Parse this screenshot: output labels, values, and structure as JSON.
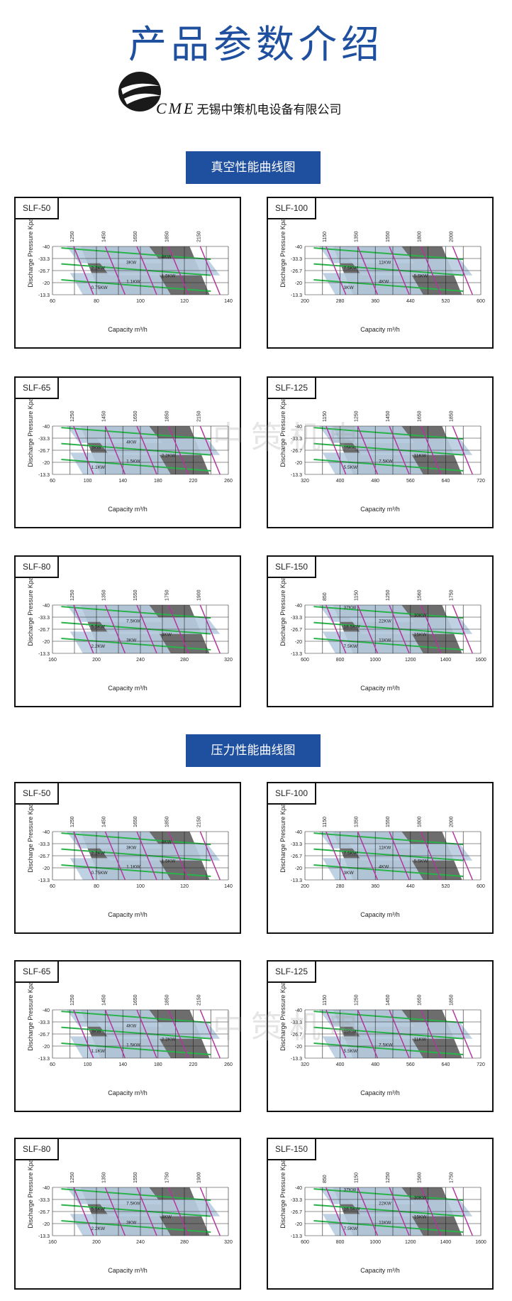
{
  "page_title": "产品参数介绍",
  "company": {
    "brand": "CME",
    "name": "无锡中策机电设备有限公司"
  },
  "sections": [
    {
      "title": "真空性能曲线图"
    },
    {
      "title": "压力性能曲线图"
    }
  ],
  "watermark": "中策机电",
  "common": {
    "ylabel": "Discharge Pressure Kpa",
    "xlabel": "Capacity m³/h",
    "yticks": [
      "-40",
      "-33.3",
      "-26.7",
      "-20",
      "-13.3"
    ]
  },
  "colors": {
    "accent": "#1f4f9f",
    "band_fill": "#b8cde0",
    "dark_fill": "#6d6d6d",
    "green": "#29b34a",
    "magenta": "#b3359e"
  },
  "chart_data": [
    {
      "type": "area",
      "model": "SLF-50",
      "x": [
        60,
        80,
        100,
        120,
        140
      ],
      "speeds": [
        "1250",
        "1450",
        "1650",
        "1850",
        "2150"
      ],
      "power": [
        "0.75KW",
        "1.1KW",
        "1.5KW",
        "2.2KW",
        "3KW",
        "4KW"
      ],
      "xlabel": "Capacity m³/h",
      "ylabel": "Discharge Pressure Kpa"
    },
    {
      "type": "area",
      "model": "SLF-100",
      "x": [
        200,
        280,
        360,
        440,
        520,
        600
      ],
      "speeds": [
        "1150",
        "1350",
        "1550",
        "1800",
        "2000"
      ],
      "power": [
        "3KW",
        "4KW",
        "5.5KW",
        "7.5KW",
        "11KW"
      ],
      "xlabel": "Capacity m³/h",
      "ylabel": "Discharge Pressure Kpa"
    },
    {
      "type": "area",
      "model": "SLF-65",
      "x": [
        60,
        100,
        140,
        180,
        220,
        260
      ],
      "speeds": [
        "1250",
        "1450",
        "1650",
        "1850",
        "2150"
      ],
      "power": [
        "1.1KW",
        "1.5KW",
        "2.2KW",
        "3KW",
        "4KW"
      ],
      "xlabel": "Capacity m³/h",
      "ylabel": "Discharge Pressure Kpa"
    },
    {
      "type": "area",
      "model": "SLF-125",
      "x": [
        320,
        400,
        480,
        560,
        640,
        720
      ],
      "speeds": [
        "1150",
        "1250",
        "1450",
        "1650",
        "1850"
      ],
      "power": [
        "5.5KW",
        "7.5KW",
        "11KW",
        "15KW"
      ],
      "xlabel": "Capacity m³/h",
      "ylabel": "Discharge Pressure Kpa"
    },
    {
      "type": "area",
      "model": "SLF-80",
      "x": [
        160,
        200,
        240,
        280,
        320
      ],
      "speeds": [
        "1250",
        "1350",
        "1550",
        "1750",
        "1900"
      ],
      "power": [
        "2.2KW",
        "3KW",
        "4KW",
        "5.5KW",
        "7.5KW"
      ],
      "xlabel": "Capacity m³/h",
      "ylabel": "Discharge Pressure Kpa"
    },
    {
      "type": "area",
      "model": "SLF-150",
      "x": [
        600,
        800,
        1000,
        1200,
        1400,
        1600
      ],
      "speeds": [
        "850",
        "1150",
        "1250",
        "1560",
        "1750"
      ],
      "power": [
        "7.5KW",
        "11KW",
        "15KW",
        "18.5KW",
        "22KW",
        "30KW",
        "37KW"
      ],
      "xlabel": "Capacity m³/h",
      "ylabel": "Discharge Pressure Kpa"
    },
    {
      "type": "area",
      "model": "SLF-50",
      "x": [
        60,
        80,
        100,
        120,
        140
      ],
      "speeds": [
        "1250",
        "1450",
        "1650",
        "1850",
        "2150"
      ],
      "power": [
        "0.75KW",
        "1.1KW",
        "1.5KW",
        "2.2KW",
        "3KW",
        "4KW"
      ],
      "xlabel": "Capacity m³/h",
      "ylabel": "Discharge Pressure Kpa"
    },
    {
      "type": "area",
      "model": "SLF-100",
      "x": [
        200,
        280,
        360,
        440,
        520,
        600
      ],
      "speeds": [
        "1150",
        "1350",
        "1550",
        "1800",
        "2000"
      ],
      "power": [
        "3KW",
        "4KW",
        "5.5KW",
        "7.5KW",
        "11KW"
      ],
      "xlabel": "Capacity m³/h",
      "ylabel": "Discharge Pressure Kpa"
    },
    {
      "type": "area",
      "model": "SLF-65",
      "x": [
        60,
        100,
        140,
        180,
        220,
        260
      ],
      "speeds": [
        "1250",
        "1450",
        "1650",
        "1850",
        "2150"
      ],
      "power": [
        "1.1KW",
        "1.5KW",
        "2.2KW",
        "3KW",
        "4KW"
      ],
      "xlabel": "Capacity m³/h",
      "ylabel": "Discharge Pressure Kpa"
    },
    {
      "type": "area",
      "model": "SLF-125",
      "x": [
        320,
        400,
        480,
        560,
        640,
        720
      ],
      "speeds": [
        "1150",
        "1250",
        "1450",
        "1650",
        "1850"
      ],
      "power": [
        "5.5KW",
        "7.5KW",
        "11KW",
        "15KW"
      ],
      "xlabel": "Capacity m³/h",
      "ylabel": "Discharge Pressure Kpa"
    },
    {
      "type": "area",
      "model": "SLF-80",
      "x": [
        160,
        200,
        240,
        280,
        320
      ],
      "speeds": [
        "1250",
        "1350",
        "1550",
        "1750",
        "1900"
      ],
      "power": [
        "2.2KW",
        "3KW",
        "4KW",
        "5.5KW",
        "7.5KW"
      ],
      "xlabel": "Capacity m³/h",
      "ylabel": "Discharge Pressure Kpa"
    },
    {
      "type": "area",
      "model": "SLF-150",
      "x": [
        600,
        800,
        1000,
        1200,
        1400,
        1600
      ],
      "speeds": [
        "850",
        "1150",
        "1250",
        "1560",
        "1750"
      ],
      "power": [
        "7.5KW",
        "11KW",
        "15KW",
        "18.5KW",
        "22KW",
        "30KW",
        "37KW"
      ],
      "xlabel": "Capacity m³/h",
      "ylabel": "Discharge Pressure Kpa"
    }
  ]
}
